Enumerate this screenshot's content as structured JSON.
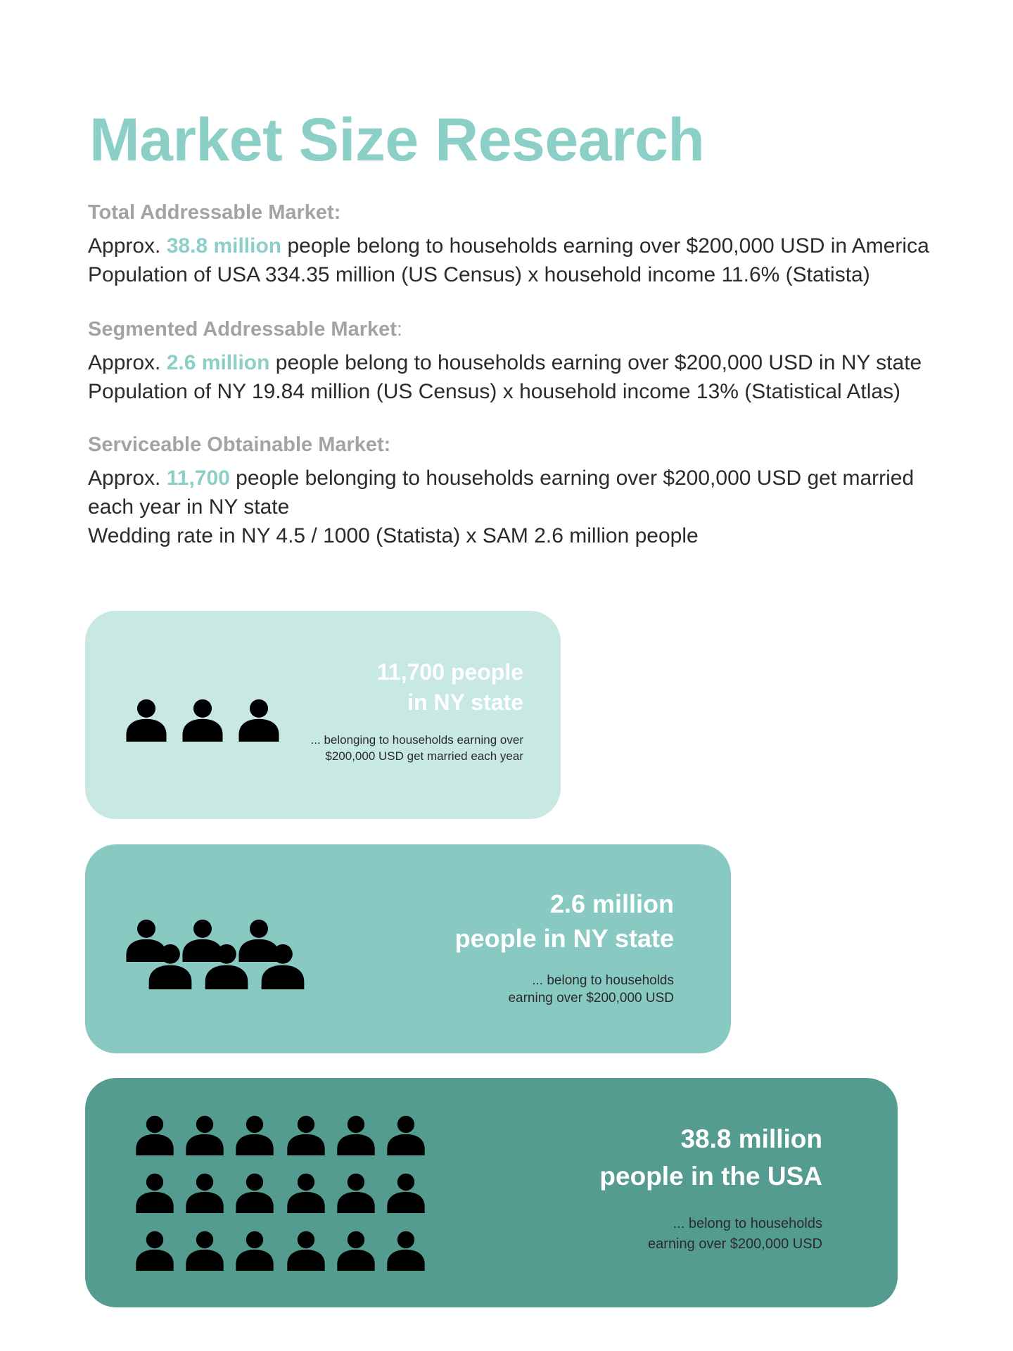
{
  "title": "Market Size Research",
  "sections": [
    {
      "heading": "Total Addressable Market:",
      "line1_prefix": "Approx. ",
      "line1_highlight": "38.8 million",
      "line1_suffix": " people belong to households earning over $200,000 USD in America",
      "line2": "Population of USA 334.35 million (US Census) x household income 11.6% (Statista)"
    },
    {
      "heading": "Segmented Addressable Market",
      "heading_colon": ":",
      "line1_prefix": "Approx. ",
      "line1_highlight": "2.6 million",
      "line1_suffix": " people belong to households earning over $200,000 USD in NY state",
      "line2": "Population of NY 19.84 million (US Census) x household income 13% (Statistical Atlas)"
    },
    {
      "heading": "Serviceable Obtainable Market:",
      "line1_prefix": "Approx. ",
      "line1_highlight": "11,700",
      "line1_suffix": " people belonging to households earning over $200,000 USD get married",
      "line1b": "each year in NY state",
      "line2": "Wedding rate in NY 4.5 / 1000 (Statista) x SAM 2.6 million people"
    }
  ],
  "cards": [
    {
      "head1": "11,700 people",
      "head2": "in NY state",
      "sub1": "... belonging to households earning over",
      "sub2": "$200,000 USD get married each year",
      "color": "#c8e8e4"
    },
    {
      "head1": "2.6 million",
      "head2": "people in NY state",
      "sub1": "... belong to households",
      "sub2": "earning over $200,000 USD",
      "color": "#88c9c1"
    },
    {
      "head1": "38.8 million",
      "head2": "people in the USA",
      "sub1": "...  belong to households",
      "sub2": "earning over $200,000 USD",
      "color": "#559c90"
    }
  ],
  "colors": {
    "accent": "#8ccfc7",
    "heading_gray": "#a3a3a3",
    "icon": "#000000"
  },
  "icons": [
    "person-icon"
  ]
}
